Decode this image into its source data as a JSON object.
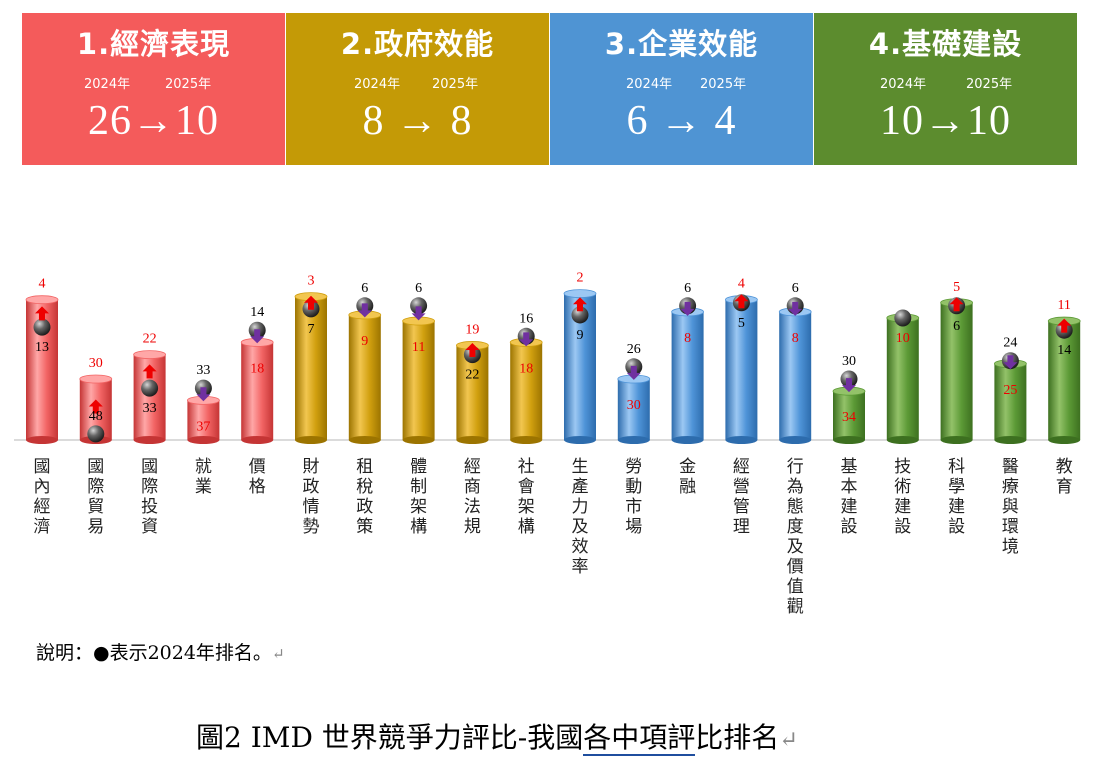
{
  "panels": [
    {
      "title": "1.經濟表現",
      "year_a": "2024年",
      "year_b": "2025年",
      "change": "26→10",
      "color": "#f45b5b"
    },
    {
      "title": "2.政府效能",
      "year_a": "2024年",
      "year_b": "2025年",
      "change": "8 → 8",
      "color": "#c49a06"
    },
    {
      "title": "3.企業效能",
      "year_a": "2024年",
      "year_b": "2025年",
      "change": "6 → 4",
      "color": "#4f94d3"
    },
    {
      "title": "4.基礎建設",
      "year_a": "2024年",
      "year_b": "2025年",
      "change": "10→10",
      "color": "#5c8c2e"
    }
  ],
  "chart_data": {
    "type": "bar",
    "description_y": "rank (1 = best); bar height reflects better rank",
    "ylim": [
      50,
      0
    ],
    "categories": [
      "國內經濟",
      "國際貿易",
      "國際投資",
      "就業",
      "價格",
      "財政情勢",
      "租稅政策",
      "體制架構",
      "經商法規",
      "社會架構",
      "生產力及效率",
      "勞動市場",
      "金融",
      "經營管理",
      "行為態度及價值觀",
      "基本建設",
      "技術建設",
      "科學建設",
      "醫療與環境",
      "教育"
    ],
    "groups": [
      0,
      0,
      0,
      0,
      0,
      1,
      1,
      1,
      1,
      1,
      2,
      2,
      2,
      2,
      2,
      3,
      3,
      3,
      3,
      3
    ],
    "series": [
      {
        "name": "2024年",
        "values": [
          13,
          48,
          33,
          33,
          14,
          7,
          6,
          6,
          22,
          16,
          9,
          26,
          6,
          5,
          6,
          30,
          10,
          6,
          24,
          14
        ]
      },
      {
        "name": "2025年",
        "values": [
          4,
          30,
          22,
          37,
          18,
          3,
          9,
          11,
          19,
          18,
          2,
          30,
          8,
          4,
          8,
          34,
          10,
          5,
          25,
          11
        ]
      }
    ],
    "direction": [
      "up",
      "up",
      "up",
      "down",
      "down",
      "up",
      "down",
      "down",
      "up",
      "down",
      "up",
      "down",
      "down",
      "up",
      "down",
      "down",
      "none",
      "up",
      "down",
      "up"
    ]
  },
  "note": "說明：●表示2024年排名。",
  "caption_pre": "圖2 IMD 世界競爭力評比-我國",
  "caption_ul": "各中項評",
  "caption_post": "比排名"
}
